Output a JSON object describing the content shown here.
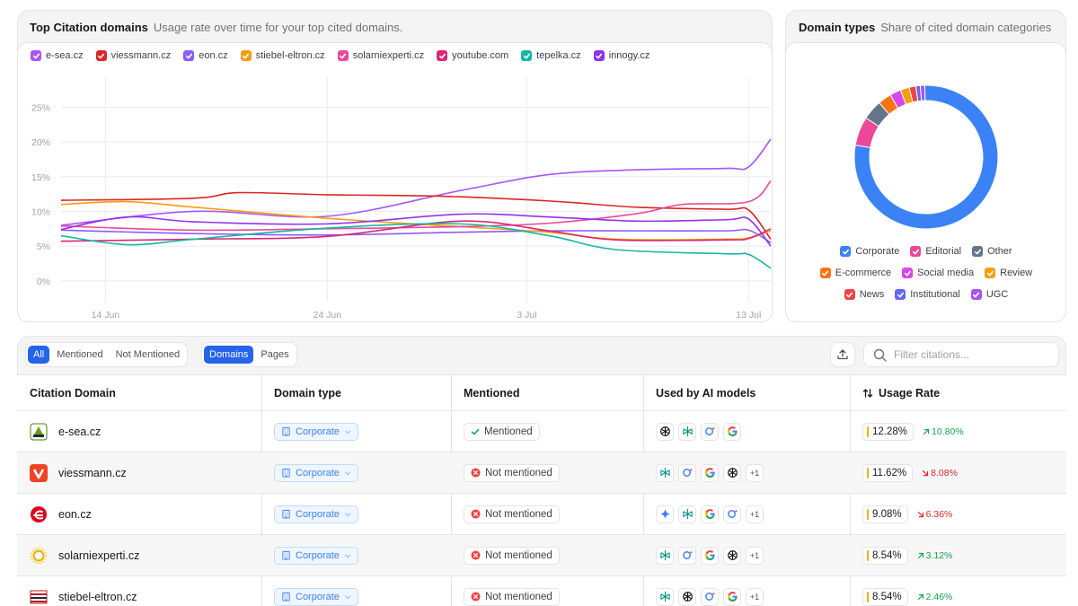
{
  "citations_card": {
    "title": "Top Citation domains",
    "subtitle": "Usage rate over time for your top cited domains."
  },
  "domain_types_card": {
    "title": "Domain types",
    "subtitle": "Share of cited domain categories"
  },
  "chart_data": [
    {
      "type": "line",
      "title": "Top Citation domains",
      "x": [
        "12 Jun",
        "13 Jun",
        "14 Jun",
        "15 Jun",
        "16 Jun",
        "17 Jun",
        "18 Jun",
        "19 Jun",
        "20 Jun",
        "21 Jun",
        "22 Jun",
        "23 Jun",
        "24 Jun",
        "25 Jun",
        "26 Jun",
        "27 Jun",
        "28 Jun",
        "29 Jun",
        "30 Jun",
        "1 Jul",
        "2 Jul",
        "3 Jul",
        "4 Jul",
        "5 Jul",
        "6 Jul",
        "7 Jul",
        "8 Jul",
        "9 Jul",
        "10 Jul",
        "11 Jul",
        "12 Jul",
        "13 Jul",
        "14 Jul"
      ],
      "x_tick_labels": [
        "14 Jun",
        "24 Jun",
        "3 Jul",
        "13 Jul"
      ],
      "y_tick_labels": [
        "0%",
        "5%",
        "10%",
        "15%",
        "20%",
        "25%"
      ],
      "ylim": [
        -3,
        27
      ],
      "grid": true,
      "legend_position": "top",
      "series": [
        {
          "name": "e-sea.cz",
          "color": "#a855f7",
          "points": [
            [
              0,
              8
            ],
            [
              6,
              10
            ],
            [
              12,
              9.3
            ],
            [
              18,
              13
            ],
            [
              22,
              15.3
            ],
            [
              26,
              16
            ],
            [
              30,
              16.2
            ],
            [
              31,
              16.4
            ],
            [
              32,
              20.4
            ]
          ]
        },
        {
          "name": "viessmann.cz",
          "color": "#dc2626",
          "points": [
            [
              0,
              11.6
            ],
            [
              6,
              11.9
            ],
            [
              8,
              12.7
            ],
            [
              12,
              12.4
            ],
            [
              17,
              12.2
            ],
            [
              22,
              11.5
            ],
            [
              26,
              10.6
            ],
            [
              30,
              10.3
            ],
            [
              31,
              10.2
            ],
            [
              32,
              6
            ]
          ]
        },
        {
          "name": "eon.cz",
          "color": "#8b5cf6",
          "points": [
            [
              0,
              7.3
            ],
            [
              6,
              6.8
            ],
            [
              12,
              6.6
            ],
            [
              18,
              7
            ],
            [
              22,
              7.2
            ],
            [
              26,
              7.2
            ],
            [
              30,
              7.2
            ],
            [
              31,
              7.3
            ],
            [
              32,
              5.5
            ]
          ]
        },
        {
          "name": "stiebel-eltron.cz",
          "color": "#f59e0b",
          "points": [
            [
              0,
              11
            ],
            [
              3,
              11.4
            ],
            [
              6,
              10.6
            ],
            [
              12,
              9
            ],
            [
              18,
              7.8
            ],
            [
              22,
              7
            ],
            [
              25,
              6
            ],
            [
              30,
              6
            ],
            [
              31,
              6.2
            ],
            [
              32,
              7.2
            ]
          ]
        },
        {
          "name": "solarniexperti.cz",
          "color": "#ec4899",
          "points": [
            [
              0,
              7.9
            ],
            [
              6,
              7.3
            ],
            [
              12,
              7.5
            ],
            [
              18,
              7.8
            ],
            [
              22,
              8.3
            ],
            [
              26,
              9.7
            ],
            [
              28,
              11
            ],
            [
              31,
              11.4
            ],
            [
              32,
              14.4
            ]
          ]
        },
        {
          "name": "youtube.com",
          "color": "#db2777",
          "points": [
            [
              0,
              5.7
            ],
            [
              6,
              6
            ],
            [
              12,
              6.4
            ],
            [
              18,
              8.6
            ],
            [
              22,
              7.2
            ],
            [
              25,
              5.9
            ],
            [
              30,
              5.9
            ],
            [
              31,
              6.1
            ],
            [
              32,
              7.5
            ]
          ]
        },
        {
          "name": "tepelka.cz",
          "color": "#14b8a6",
          "points": [
            [
              0,
              6.5
            ],
            [
              3,
              5.2
            ],
            [
              6,
              6
            ],
            [
              12,
              7.6
            ],
            [
              18,
              8.2
            ],
            [
              22,
              6.5
            ],
            [
              25,
              4.5
            ],
            [
              30,
              3.9
            ],
            [
              31,
              3.8
            ],
            [
              32,
              1.8
            ]
          ]
        },
        {
          "name": "innogy.cz",
          "color": "#9333ea",
          "points": [
            [
              0,
              7.4
            ],
            [
              3,
              9.2
            ],
            [
              6,
              8.5
            ],
            [
              12,
              8.2
            ],
            [
              18,
              9.6
            ],
            [
              22,
              9.2
            ],
            [
              26,
              8.6
            ],
            [
              30,
              8.8
            ],
            [
              31,
              8.9
            ],
            [
              32,
              5
            ]
          ]
        }
      ]
    },
    {
      "type": "pie",
      "title": "Domain types",
      "slices": [
        {
          "name": "Corporate",
          "value": 78,
          "color": "#3b82f6"
        },
        {
          "name": "Editorial",
          "value": 6.5,
          "color": "#ec4899"
        },
        {
          "name": "Other",
          "value": 4.5,
          "color": "#64748b"
        },
        {
          "name": "E-commerce",
          "value": 3,
          "color": "#f97316"
        },
        {
          "name": "Social media",
          "value": 2.5,
          "color": "#d946ef"
        },
        {
          "name": "Review",
          "value": 2,
          "color": "#f59e0b"
        },
        {
          "name": "News",
          "value": 1.5,
          "color": "#ef4444"
        },
        {
          "name": "Institutional",
          "value": 1,
          "color": "#6366f1"
        },
        {
          "name": "UGC",
          "value": 1,
          "color": "#a855f7"
        }
      ]
    }
  ],
  "toolbar": {
    "filter_mention": [
      "All",
      "Mentioned",
      "Not Mentioned"
    ],
    "filter_scope": [
      "Domains",
      "Pages"
    ],
    "search_placeholder": "Filter citations..."
  },
  "table": {
    "headers": {
      "domain": "Citation Domain",
      "type": "Domain type",
      "mentioned": "Mentioned",
      "models": "Used by AI models",
      "rate": "Usage Rate"
    },
    "rows": [
      {
        "domain": "e-sea.cz",
        "type": "Corporate",
        "mentioned": "Mentioned",
        "more": "",
        "rate": "12.28%",
        "delta": "10.80%"
      },
      {
        "domain": "viessmann.cz",
        "type": "Corporate",
        "mentioned": "Not mentioned",
        "more": "+1",
        "rate": "11.62%",
        "delta": "8.08%"
      },
      {
        "domain": "eon.cz",
        "type": "Corporate",
        "mentioned": "Not mentioned",
        "more": "+1",
        "rate": "9.08%",
        "delta": "6.36%"
      },
      {
        "domain": "solarniexperti.cz",
        "type": "Corporate",
        "mentioned": "Not mentioned",
        "more": "+1",
        "rate": "8.54%",
        "delta": "3.12%"
      },
      {
        "domain": "stiebel-eltron.cz",
        "type": "Corporate",
        "mentioned": "Not mentioned",
        "more": "+1",
        "rate": "8.54%",
        "delta": "2.46%"
      }
    ]
  }
}
